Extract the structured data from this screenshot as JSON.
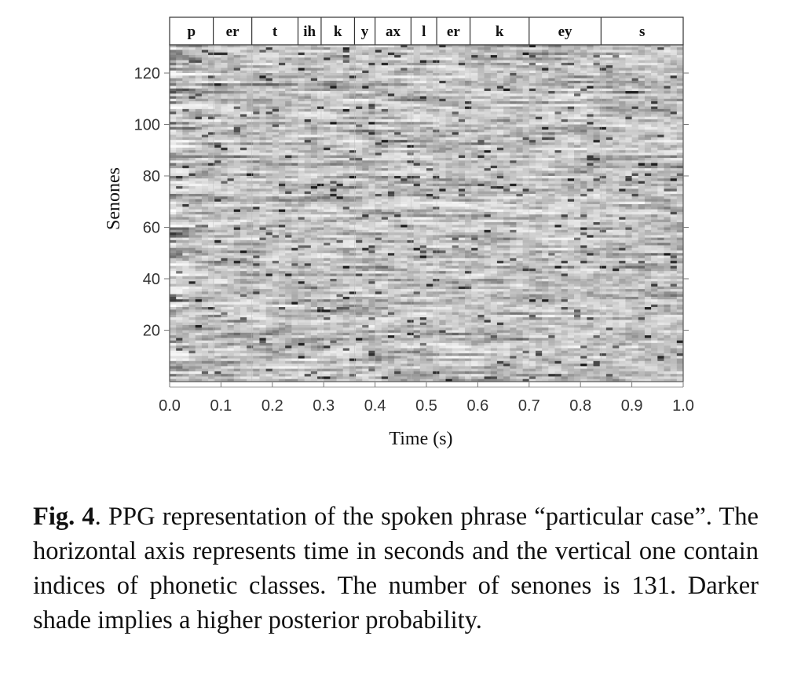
{
  "chart_data": {
    "type": "heatmap",
    "xlabel": "Time (s)",
    "ylabel": "Senones",
    "xlim": [
      0.0,
      1.0
    ],
    "ylim": [
      0,
      131
    ],
    "x_ticks": [
      "0.0",
      "0.1",
      "0.2",
      "0.3",
      "0.4",
      "0.5",
      "0.6",
      "0.7",
      "0.8",
      "0.9",
      "1.0"
    ],
    "y_ticks": [
      "20",
      "40",
      "60",
      "80",
      "100",
      "120"
    ],
    "colormap": "grayscale (darker = higher posterior probability)",
    "num_senones": 131,
    "phone_segments": [
      {
        "label": "p",
        "start": 0.0,
        "end": 0.085
      },
      {
        "label": "er",
        "start": 0.085,
        "end": 0.16
      },
      {
        "label": "t",
        "start": 0.16,
        "end": 0.25
      },
      {
        "label": "ih",
        "start": 0.25,
        "end": 0.295
      },
      {
        "label": "k",
        "start": 0.295,
        "end": 0.36
      },
      {
        "label": "y",
        "start": 0.36,
        "end": 0.4
      },
      {
        "label": "ax",
        "start": 0.4,
        "end": 0.47
      },
      {
        "label": "l",
        "start": 0.47,
        "end": 0.52
      },
      {
        "label": "er",
        "start": 0.52,
        "end": 0.585
      },
      {
        "label": "k",
        "start": 0.585,
        "end": 0.7
      },
      {
        "label": "ey",
        "start": 0.7,
        "end": 0.84
      },
      {
        "label": "s",
        "start": 0.84,
        "end": 1.0
      }
    ]
  },
  "caption": {
    "label": "Fig. 4",
    "text": ". PPG representation of the spoken phrase “particular case”. The horizontal axis represents time in seconds and the vertical one contain indices of phonetic classes. The number of senones is 131.  Darker shade implies a higher posterior probability."
  }
}
